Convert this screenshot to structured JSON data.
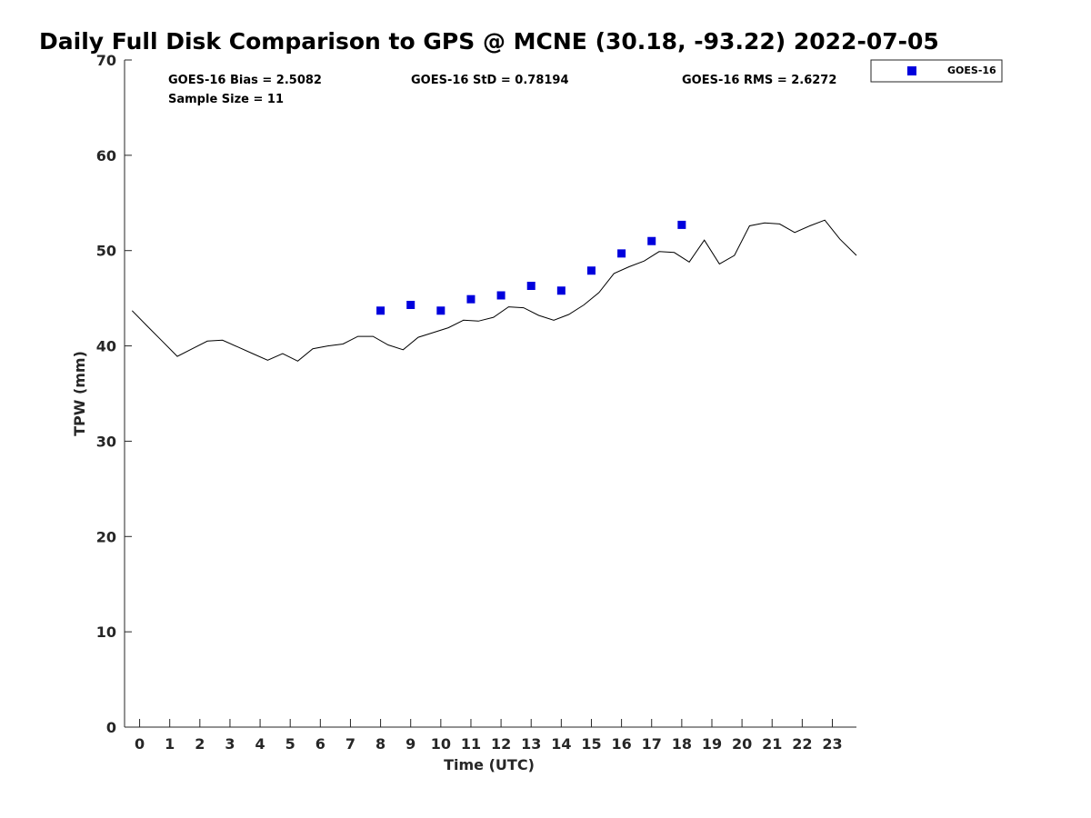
{
  "chart_data": {
    "type": "scatter",
    "title": "Daily Full Disk Comparison to GPS @ MCNE (30.18, -93.22) 2022-07-05",
    "xlabel": "Time (UTC)",
    "ylabel": "TPW (mm)",
    "xlim": [
      -0.5,
      23.8
    ],
    "ylim": [
      0,
      70
    ],
    "x_ticks": [
      0,
      1,
      2,
      3,
      4,
      5,
      6,
      7,
      8,
      9,
      10,
      11,
      12,
      13,
      14,
      15,
      16,
      17,
      18,
      19,
      20,
      21,
      22,
      23
    ],
    "y_ticks": [
      0,
      10,
      20,
      30,
      40,
      50,
      60,
      70
    ],
    "grid": false,
    "legend_position": "top-right-outside",
    "stats": {
      "bias": "GOES-16 Bias = 2.5082",
      "std": "GOES-16 StD = 0.78194",
      "rms": "GOES-16 RMS = 2.6272",
      "sample": "Sample Size = 11"
    },
    "series": [
      {
        "name": "GOES-16",
        "kind": "scatter",
        "marker": "square",
        "color": "#0000dd",
        "x": [
          8,
          9,
          10,
          11,
          12,
          13,
          14,
          15,
          16,
          17,
          18
        ],
        "y": [
          43.7,
          44.3,
          43.7,
          44.9,
          45.3,
          46.3,
          45.8,
          47.9,
          49.7,
          51.0,
          52.7
        ]
      },
      {
        "kind": "line",
        "color": "#000000",
        "x": [
          -0.25,
          0.25,
          0.75,
          1.25,
          1.75,
          2.25,
          2.75,
          3.25,
          3.75,
          4.25,
          4.75,
          5.25,
          5.75,
          6.25,
          6.75,
          7.25,
          7.75,
          8.25,
          8.75,
          9.25,
          9.75,
          10.25,
          10.75,
          11.25,
          11.75,
          12.25,
          12.75,
          13.25,
          13.75,
          14.25,
          14.75,
          15.25,
          15.75,
          16.25,
          16.75,
          17.25,
          17.75,
          18.25,
          18.75,
          19.25,
          19.75,
          20.25,
          20.75,
          21.25,
          21.75,
          22.25,
          22.75,
          23.25,
          23.8
        ],
        "y": [
          43.7,
          42.1,
          40.5,
          38.9,
          39.7,
          40.5,
          40.6,
          39.9,
          39.2,
          38.5,
          39.2,
          38.4,
          39.7,
          40.0,
          40.2,
          41.0,
          41.0,
          40.1,
          39.6,
          40.9,
          41.4,
          41.9,
          42.7,
          42.6,
          43.0,
          44.1,
          44.0,
          43.2,
          42.7,
          43.3,
          44.3,
          45.6,
          47.6,
          48.3,
          48.9,
          49.9,
          49.8,
          48.8,
          51.1,
          48.6,
          49.5,
          52.6,
          52.9,
          52.8,
          51.9,
          52.6,
          53.2,
          51.2,
          49.5
        ]
      }
    ]
  }
}
